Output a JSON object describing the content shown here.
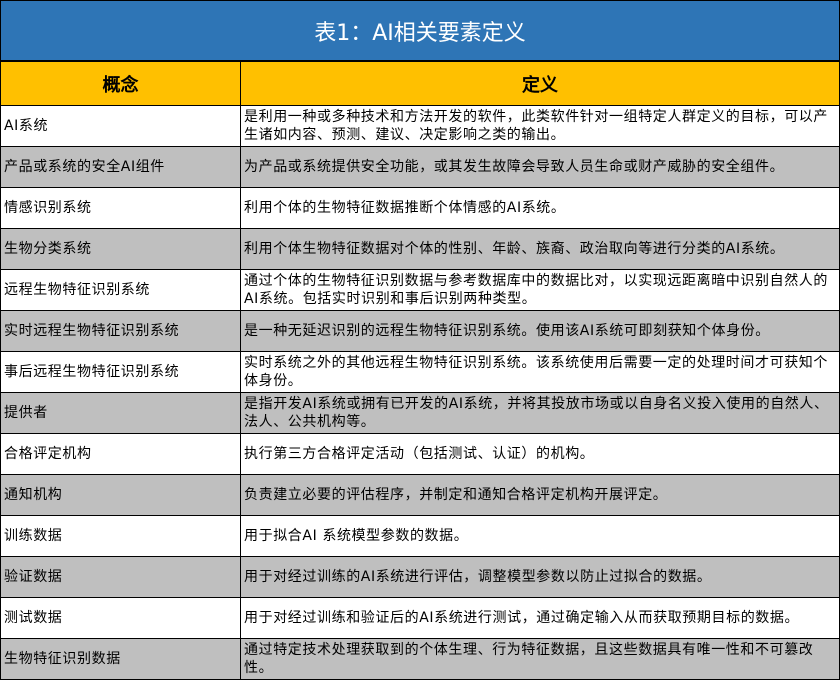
{
  "title": "表1：AI相关要素定义",
  "header": {
    "concept": "概念",
    "definition": "定义"
  },
  "colors": {
    "title_bg": "#2E75B6",
    "header_bg": "#FFC000",
    "alt_row_bg": "#BFBFBF"
  },
  "rows": [
    {
      "concept": "AI系统",
      "definition": "是利用一种或多种技术和方法开发的软件，此类软件针对一组特定人群定义的目标，可以产生诸如内容、预测、建议、决定影响之类的输出。"
    },
    {
      "concept": "产品或系统的安全AI组件",
      "definition": "为产品或系统提供安全功能，或其发生故障会导致人员生命或财产威胁的安全组件。"
    },
    {
      "concept": "情感识别系统",
      "definition": "利用个体的生物特征数据推断个体情感的AI系统。"
    },
    {
      "concept": "生物分类系统",
      "definition": "利用个体生物特征数据对个体的性别、年龄、族裔、政治取向等进行分类的AI系统。"
    },
    {
      "concept": "远程生物特征识别系统",
      "definition": "通过个体的生物特征识别数据与参考数据库中的数据比对，以实现远距离暗中识别自然人的AI系统。包括实时识别和事后识别两种类型。"
    },
    {
      "concept": "实时远程生物特征识别系统",
      "definition": "是一种无延迟识别的远程生物特征识别系统。使用该AI系统可即刻获知个体身份。"
    },
    {
      "concept": "事后远程生物特征识别系统",
      "definition": "实时系统之外的其他远程生物特征识别系统。该系统使用后需要一定的处理时间才可获知个体身份。"
    },
    {
      "concept": "提供者",
      "definition": "是指开发AI系统或拥有已开发的AI系统，并将其投放市场或以自身名义投入使用的自然人、法人、公共机构等。"
    },
    {
      "concept": "合格评定机构",
      "definition": "执行第三方合格评定活动（包括测试、认证）的机构。"
    },
    {
      "concept": "通知机构",
      "definition": "负责建立必要的评估程序，并制定和通知合格评定机构开展评定。"
    },
    {
      "concept": "训练数据",
      "definition": "用于拟合AI  系统模型参数的数据。"
    },
    {
      "concept": "验证数据",
      "definition": "用于对经过训练的AI系统进行评估，调整模型参数以防止过拟合的数据。"
    },
    {
      "concept": "测试数据",
      "definition": "用于对经过训练和验证后的AI系统进行测试，通过确定输入从而获取预期目标的数据。"
    },
    {
      "concept": "生物特征识别数据",
      "definition": "通过特定技术处理获取到的个体生理、行为特征数据，且这些数据具有唯一性和不可篡改性。"
    }
  ]
}
